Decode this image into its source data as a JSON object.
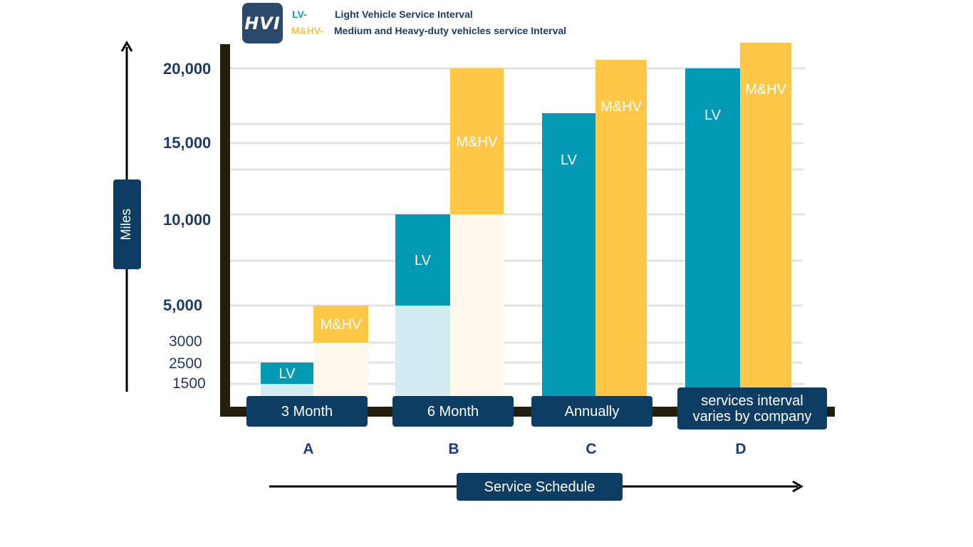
{
  "logo": {
    "text": "HVI"
  },
  "legend": [
    {
      "abbr": "LV-",
      "label": "Light Vehicle Service Interval",
      "color": "#0aa1b5"
    },
    {
      "abbr": "M&HV-",
      "label": "Medium and Heavy-duty vehicles service Interval",
      "color": "#fbc343"
    }
  ],
  "colors": {
    "lv": "#0199b3",
    "mhv": "#fec846",
    "axis": "#241e0c",
    "pill": "#0d3d63",
    "tick": "#1d3b66"
  },
  "chart_data": {
    "type": "bar",
    "title": "",
    "xlabel": "Service Schedule",
    "ylabel": "Miles",
    "categories": [
      "A",
      "B",
      "C",
      "D"
    ],
    "category_descriptions": [
      "3 Month",
      "6 Month",
      "Annually",
      "services interval varies by company"
    ],
    "y_ticks": [
      "20,000",
      "15,000",
      "10,000",
      "5,000",
      "3000",
      "2500",
      "1500"
    ],
    "series": [
      {
        "name": "LV",
        "bar_label": "LV",
        "values": [
          {
            "low": 1500,
            "high": 2500
          },
          {
            "low": 5000,
            "high": 10000
          },
          {
            "low": 0,
            "high": 17000
          },
          {
            "low": 0,
            "high": 20000
          }
        ]
      },
      {
        "name": "M&HV",
        "bar_label": "M&HV",
        "values": [
          {
            "low": 3000,
            "high": 5000
          },
          {
            "low": 10000,
            "high": 20000
          },
          {
            "low": 0,
            "high": 20500
          },
          {
            "low": 0,
            "high": 21500
          }
        ]
      }
    ],
    "legend_position": "top"
  }
}
